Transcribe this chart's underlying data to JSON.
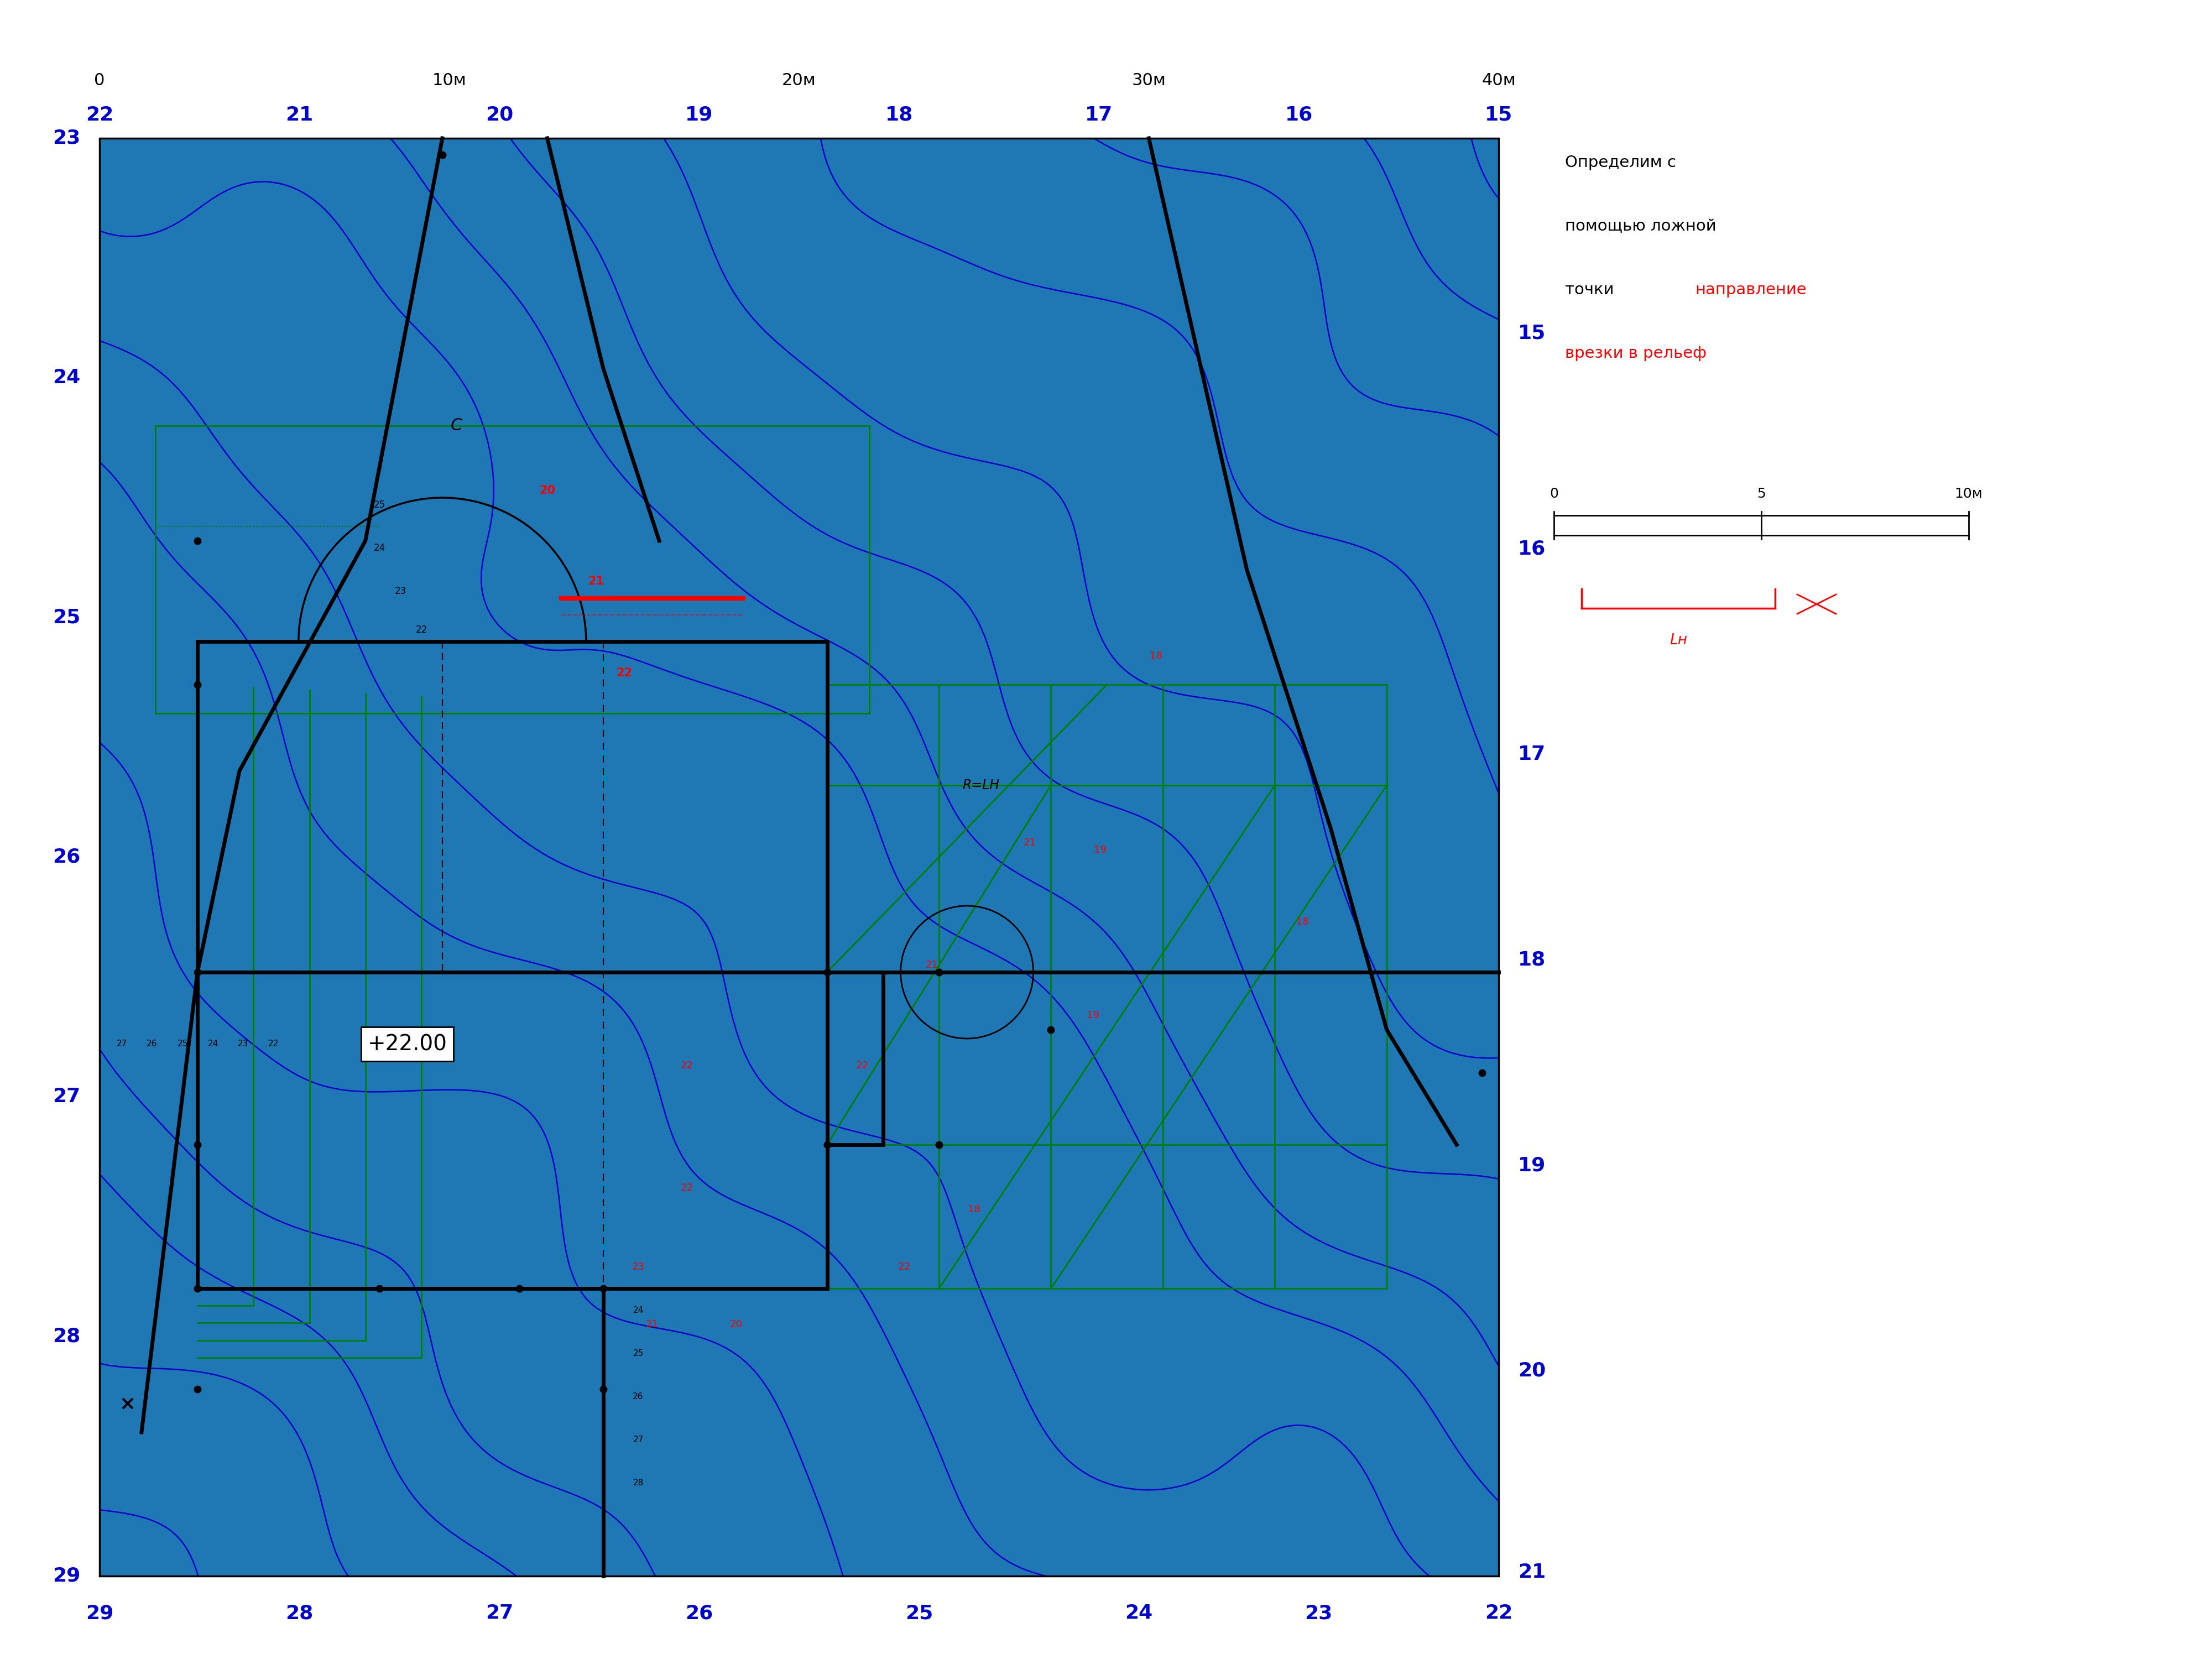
{
  "bg_color": "#ffffff",
  "ML": 1.8,
  "MR": 27.1,
  "MT": 27.5,
  "MB": 1.5,
  "top_black_vals": [
    "0",
    "10м",
    "20м",
    "30м",
    "40м"
  ],
  "top_blue_vals": [
    "22",
    "21",
    "20",
    "19",
    "18",
    "17",
    "16",
    "15"
  ],
  "bottom_blue_vals": [
    "29",
    "28",
    "27",
    "26",
    "25",
    "24",
    "23",
    "22"
  ],
  "left_blue_vals": [
    "23",
    "24",
    "25",
    "26",
    "27",
    "28",
    "29"
  ],
  "right_blue_vals": [
    "15",
    "16",
    "17",
    "18",
    "19",
    "20",
    "21"
  ],
  "text_color_black": "#000000",
  "text_color_blue": "#0000cc",
  "text_color_red": "#dd0000",
  "text_color_green": "#007700",
  "contour_color": "#0000cc",
  "building_lw": 5,
  "contour_lw": 1.8
}
